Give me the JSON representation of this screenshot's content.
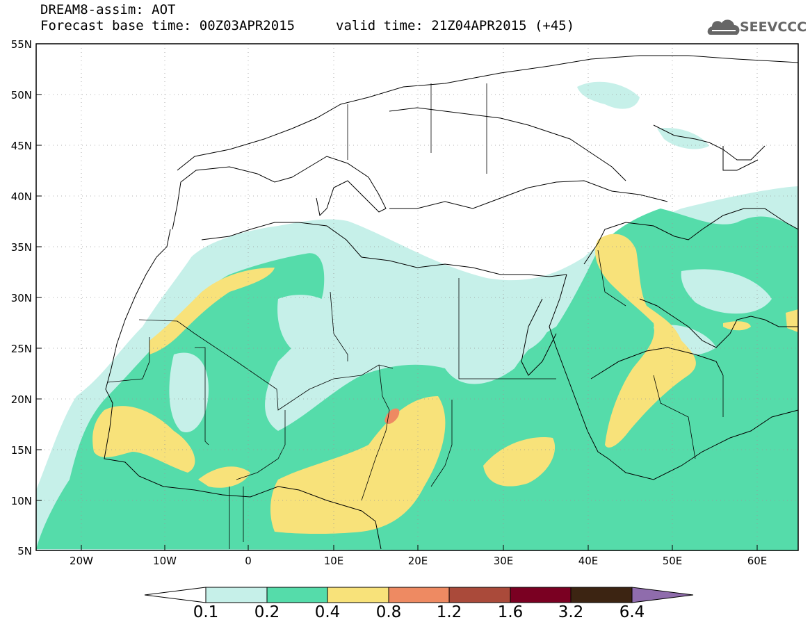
{
  "header": {
    "model_title": "DREAM8-assim: AOT",
    "base_time": "Forecast base time: 00Z03APR2015",
    "valid_time": "valid time: 21Z04APR2015 (+45)"
  },
  "logo": {
    "text": "SEEVCCC",
    "icon": "cloud-logo-icon"
  },
  "latitudes": [
    "55N",
    "50N",
    "45N",
    "40N",
    "35N",
    "30N",
    "25N",
    "20N",
    "15N",
    "10N",
    "5N"
  ],
  "longitudes": [
    "20W",
    "10W",
    "0",
    "10E",
    "20E",
    "30E",
    "40E",
    "50E",
    "60E"
  ],
  "colorbar": {
    "labels": [
      "0.1",
      "0.2",
      "0.4",
      "0.8",
      "1.2",
      "1.6",
      "3.2",
      "6.4"
    ],
    "colors": [
      "#ffffff",
      "#c6f0e9",
      "#55dcaa",
      "#f8e27a",
      "#ee8a62",
      "#aa4a3a",
      "#7a0022",
      "#3c2412",
      "#8f6cac"
    ]
  },
  "colors": {
    "background": "#ffffff",
    "aot_0_1": "#c6f0e9",
    "aot_0_2": "#55dcaa",
    "aot_0_4": "#f8e27a",
    "aot_0_8": "#ee8a62"
  }
}
